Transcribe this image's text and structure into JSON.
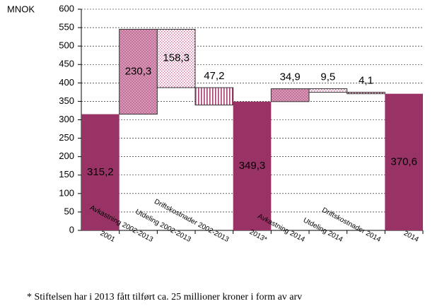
{
  "chart_data": {
    "type": "waterfall",
    "y_label": "MNOK",
    "categories": [
      "2001",
      "Avkastning 2002-2013",
      "Utdeling 2002-2013",
      "Driftskostnader 2002-2013",
      "2013*",
      "Avkastning 2014",
      "Utdeling 2014",
      "Driftskostnader 2014",
      "2014"
    ],
    "values": [
      315.2,
      230.3,
      158.3,
      47.2,
      349.3,
      34.9,
      9.5,
      4.1,
      370.6
    ],
    "value_labels": [
      "315,2",
      "230,3",
      "158,3",
      "47,2",
      "349,3",
      "34,9",
      "9,5",
      "4,1",
      "370,6"
    ],
    "bar_kinds": [
      "total",
      "increase",
      "decrease",
      "decrease",
      "total",
      "increase",
      "decrease",
      "decrease",
      "total"
    ],
    "total_color": "#993366",
    "ylim": [
      0,
      600
    ],
    "yticks": [
      0,
      50,
      100,
      150,
      200,
      250,
      300,
      350,
      400,
      450,
      500,
      550,
      600
    ],
    "grid": true,
    "footnote": "* Stiftelsen har i 2013 fått tilført ca. 25 millioner kroner i form av arv"
  }
}
